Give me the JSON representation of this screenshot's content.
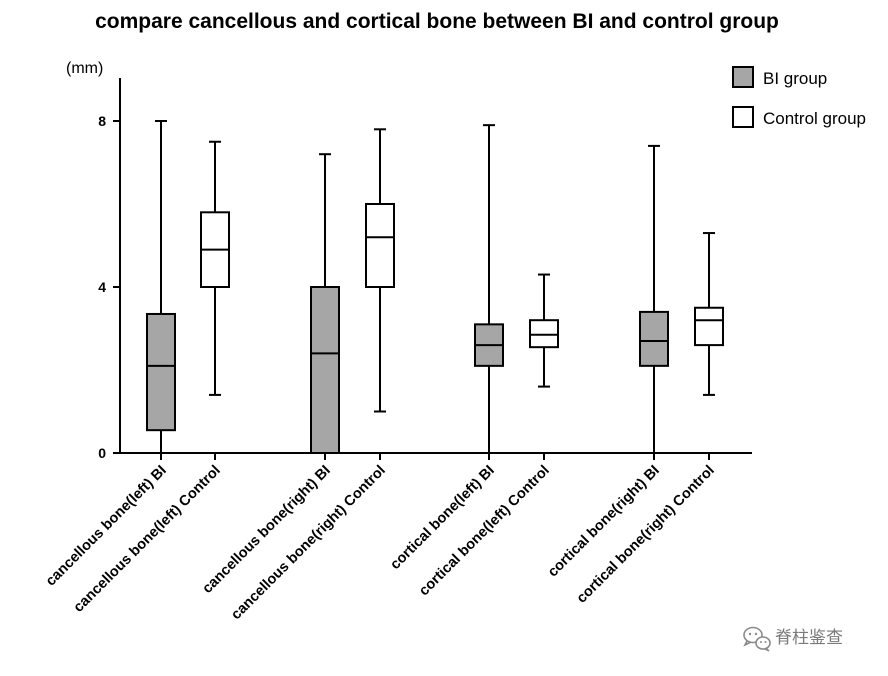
{
  "chart_data": {
    "type": "box",
    "title": "compare cancellous and cortical bone between BI and control group",
    "ylabel": "(mm)",
    "ylim": [
      0,
      9
    ],
    "yticks": [
      0,
      4,
      8
    ],
    "legend_position": "top-right",
    "grid": false,
    "categories": [
      "cancellous bone(left) BI",
      "cancellous bone(left) Control",
      "cancellous bone(right) BI",
      "cancellous bone(right) Control",
      "cortical bone(left) BI",
      "cortical bone(left) Control",
      "cortical bone(right) BI",
      "cortical bone(right) Control"
    ],
    "series": [
      {
        "name": "BI group",
        "color": "#a6a6a6"
      },
      {
        "name": "Control group",
        "color": "#ffffff"
      }
    ],
    "boxes": [
      {
        "category": "cancellous bone(left) BI",
        "series": "BI group",
        "min": 0,
        "q1": 0.55,
        "median": 2.1,
        "q3": 3.35,
        "max": 8.0
      },
      {
        "category": "cancellous bone(left) Control",
        "series": "Control group",
        "min": 1.4,
        "q1": 4.0,
        "median": 4.9,
        "q3": 5.8,
        "max": 7.5
      },
      {
        "category": "cancellous bone(right) BI",
        "series": "BI group",
        "min": 0,
        "q1": 0,
        "median": 2.4,
        "q3": 4.0,
        "max": 7.2
      },
      {
        "category": "cancellous bone(right) Control",
        "series": "Control group",
        "min": 1.0,
        "q1": 4.0,
        "median": 5.2,
        "q3": 6.0,
        "max": 7.8
      },
      {
        "category": "cortical bone(left) BI",
        "series": "BI group",
        "min": 0,
        "q1": 2.1,
        "median": 2.6,
        "q3": 3.1,
        "max": 7.9
      },
      {
        "category": "cortical bone(left) Control",
        "series": "Control group",
        "min": 1.6,
        "q1": 2.55,
        "median": 2.85,
        "q3": 3.2,
        "max": 4.3
      },
      {
        "category": "cortical bone(right) BI",
        "series": "BI group",
        "min": 0,
        "q1": 2.1,
        "median": 2.7,
        "q3": 3.4,
        "max": 7.4
      },
      {
        "category": "cortical bone(right) Control",
        "series": "Control group",
        "min": 1.4,
        "q1": 2.6,
        "median": 3.2,
        "q3": 3.5,
        "max": 5.3
      }
    ]
  },
  "watermark": {
    "icon": "wechat-logo-icon",
    "text": "脊柱鉴查"
  }
}
